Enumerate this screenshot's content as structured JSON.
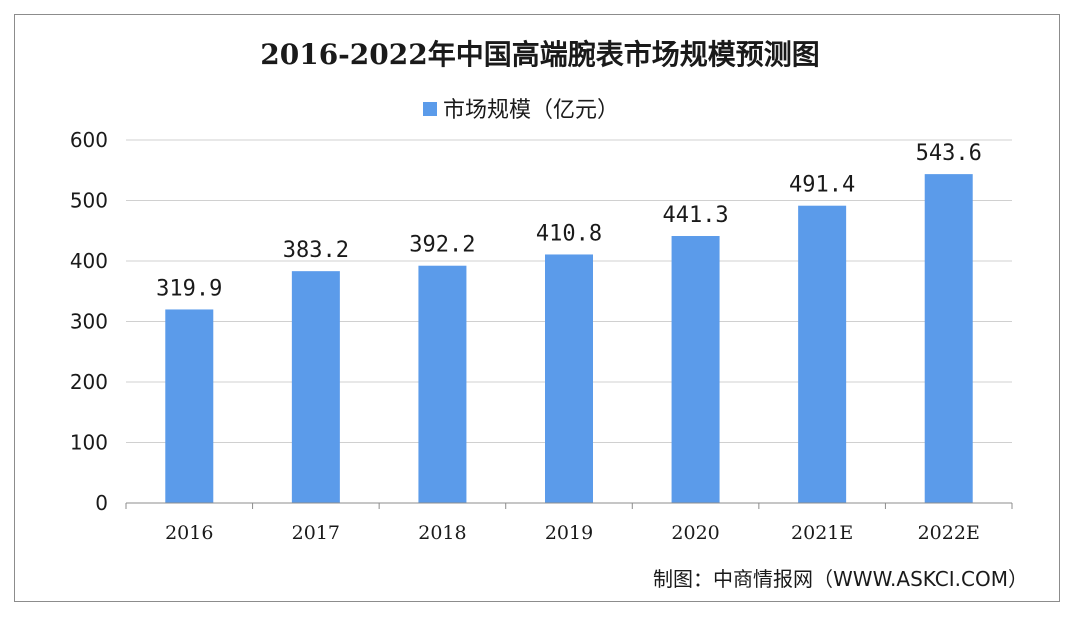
{
  "chart_data": {
    "type": "bar",
    "title": "2016-2022年中国高端腕表市场规模预测图",
    "categories": [
      "2016",
      "2017",
      "2018",
      "2019",
      "2020",
      "2021E",
      "2022E"
    ],
    "series": [
      {
        "name": "市场规模（亿元）",
        "values": [
          319.9,
          383.2,
          392.2,
          410.8,
          441.3,
          491.4,
          543.6
        ]
      }
    ],
    "value_labels": [
      "319.9",
      "383.2",
      "392.2",
      "410.8",
      "441.3",
      "491.4",
      "543.6"
    ],
    "ylim": [
      0,
      600
    ],
    "yticks": [
      0,
      100,
      200,
      300,
      400,
      500,
      600
    ],
    "grid": true,
    "legend_position": "top",
    "bar_color": "#5b9bea",
    "grid_color": "#d0d0d0"
  },
  "source": "制图：中商情报网（WWW.ASKCI.COM）"
}
